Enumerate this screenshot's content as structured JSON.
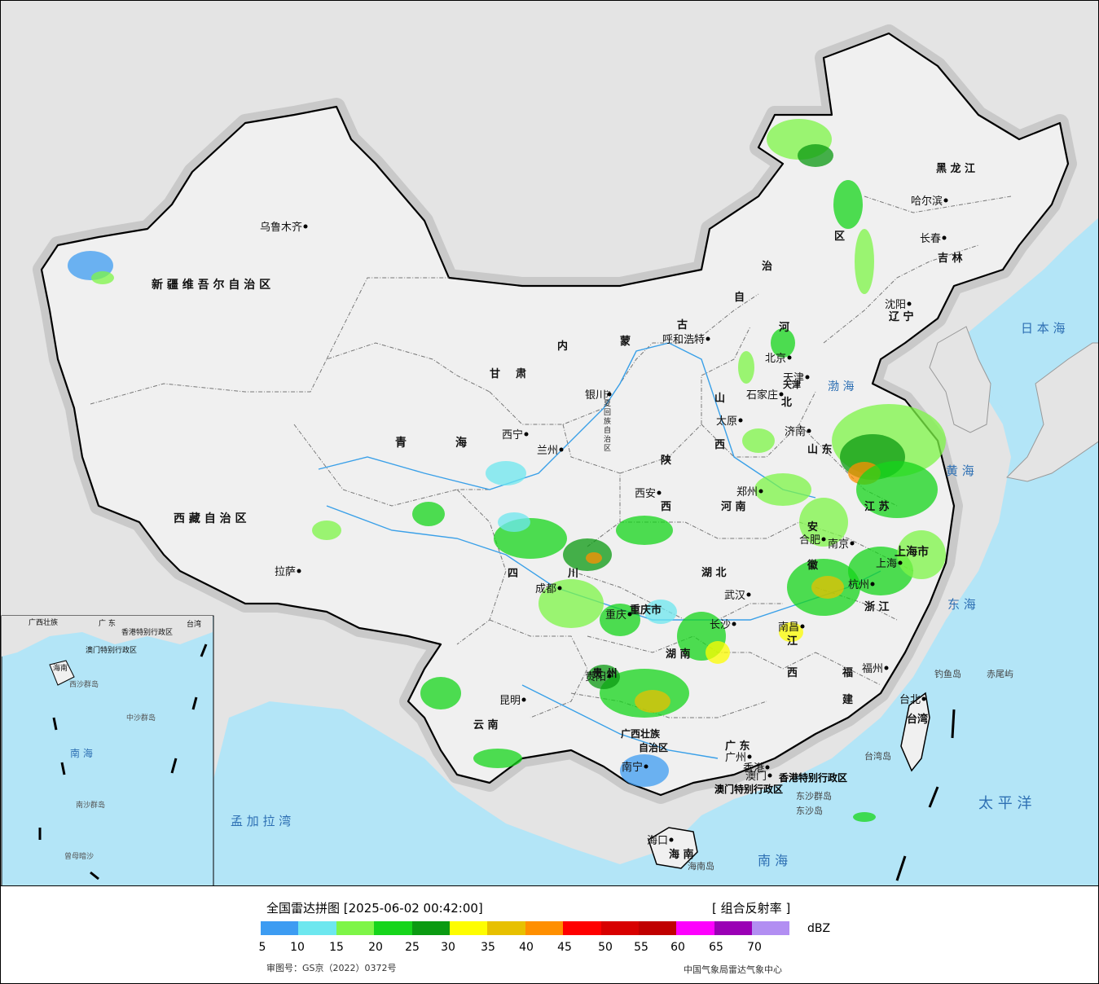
{
  "map": {
    "province_labels": [
      {
        "name": "xinjiang",
        "text": "新 疆 维 吾 尔 自 治 区"
      },
      {
        "name": "xizang",
        "text": "西 藏 自 治 区"
      },
      {
        "name": "qinghai-1",
        "text": "青"
      },
      {
        "name": "qinghai-2",
        "text": "海"
      },
      {
        "name": "gansu-1",
        "text": "甘"
      },
      {
        "name": "gansu-2",
        "text": "肃"
      },
      {
        "name": "neimenggu-1",
        "text": "内"
      },
      {
        "name": "neimenggu-2",
        "text": "蒙"
      },
      {
        "name": "neimenggu-3",
        "text": "古"
      },
      {
        "name": "neimenggu-4",
        "text": "自"
      },
      {
        "name": "neimenggu-5",
        "text": "治"
      },
      {
        "name": "neimenggu-6",
        "text": "区"
      },
      {
        "name": "heilongjiang",
        "text": "黑 龙 江"
      },
      {
        "name": "jilin",
        "text": "吉 林"
      },
      {
        "name": "liaoning",
        "text": "辽 宁"
      },
      {
        "name": "sichuan-1",
        "text": "四"
      },
      {
        "name": "sichuan-2",
        "text": "川"
      },
      {
        "name": "chongqing",
        "text": "重庆市"
      },
      {
        "name": "shaanxi-1",
        "text": "陕"
      },
      {
        "name": "shaanxi-2",
        "text": "西"
      },
      {
        "name": "shanxi-1",
        "text": "山"
      },
      {
        "name": "shanxi-2",
        "text": "西"
      },
      {
        "name": "hebei-1",
        "text": "河"
      },
      {
        "name": "hebei-2",
        "text": "北"
      },
      {
        "name": "henan",
        "text": "河 南"
      },
      {
        "name": "hubei",
        "text": "湖 北"
      },
      {
        "name": "hunan",
        "text": "湖 南"
      },
      {
        "name": "jiangxi-1",
        "text": "江"
      },
      {
        "name": "jiangxi-2",
        "text": "西"
      },
      {
        "name": "fujian-1",
        "text": "福"
      },
      {
        "name": "fujian-2",
        "text": "建"
      },
      {
        "name": "guizhou",
        "text": "贵 州"
      },
      {
        "name": "yunnan",
        "text": "云 南"
      },
      {
        "name": "guangxi",
        "text": "广西壮族"
      },
      {
        "name": "guangxi-2",
        "text": "自治区"
      },
      {
        "name": "guangdong",
        "text": "广 东"
      },
      {
        "name": "hainan",
        "text": "海 南"
      },
      {
        "name": "shandong",
        "text": "山 东"
      },
      {
        "name": "jiangsu",
        "text": "江 苏"
      },
      {
        "name": "anhui-1",
        "text": "安"
      },
      {
        "name": "anhui-2",
        "text": "徽"
      },
      {
        "name": "zhejiang",
        "text": "浙 江"
      },
      {
        "name": "shanghai",
        "text": "上海市"
      },
      {
        "name": "tianjin",
        "text": "天津"
      },
      {
        "name": "ningxia",
        "text": "宁夏回族自治区"
      },
      {
        "name": "taiwan",
        "text": "台湾"
      },
      {
        "name": "hk",
        "text": "香港特别行政区"
      },
      {
        "name": "macau",
        "text": "澳门特别行政区"
      }
    ],
    "cities": [
      {
        "name": "urumqi",
        "text": "乌鲁木齐"
      },
      {
        "name": "lhasa",
        "text": "拉萨"
      },
      {
        "name": "xining",
        "text": "西宁"
      },
      {
        "name": "lanzhou",
        "text": "兰州"
      },
      {
        "name": "yinchuan",
        "text": "银川"
      },
      {
        "name": "hohhot",
        "text": "呼和浩特"
      },
      {
        "name": "beijing",
        "text": "北京"
      },
      {
        "name": "tianjin-city",
        "text": "天津"
      },
      {
        "name": "shijiazhuang",
        "text": "石家庄"
      },
      {
        "name": "taiyuan",
        "text": "太原"
      },
      {
        "name": "jinan",
        "text": "济南"
      },
      {
        "name": "zhengzhou",
        "text": "郑州"
      },
      {
        "name": "xian",
        "text": "西安"
      },
      {
        "name": "chengdu",
        "text": "成都"
      },
      {
        "name": "chongqing-city",
        "text": "重庆"
      },
      {
        "name": "wuhan",
        "text": "武汉"
      },
      {
        "name": "hefei",
        "text": "合肥"
      },
      {
        "name": "nanjing",
        "text": "南京"
      },
      {
        "name": "shanghai-city",
        "text": "上海"
      },
      {
        "name": "hangzhou",
        "text": "杭州"
      },
      {
        "name": "nanchang",
        "text": "南昌"
      },
      {
        "name": "changsha",
        "text": "长沙"
      },
      {
        "name": "fuzhou",
        "text": "福州"
      },
      {
        "name": "guiyang",
        "text": "贵阳"
      },
      {
        "name": "kunming",
        "text": "昆明"
      },
      {
        "name": "nanning",
        "text": "南宁"
      },
      {
        "name": "guangzhou",
        "text": "广州"
      },
      {
        "name": "hongkong",
        "text": "香港"
      },
      {
        "name": "macau-city",
        "text": "澳门"
      },
      {
        "name": "haikou",
        "text": "海口"
      },
      {
        "name": "taipei",
        "text": "台北"
      },
      {
        "name": "shenyang",
        "text": "沈阳"
      },
      {
        "name": "changchun",
        "text": "长春"
      },
      {
        "name": "harbin",
        "text": "哈尔滨"
      }
    ],
    "sea_labels": [
      {
        "name": "japan-sea",
        "text": "日 本 海"
      },
      {
        "name": "bohai",
        "text": "渤 海"
      },
      {
        "name": "huanghai",
        "text": "黄 海"
      },
      {
        "name": "donghai",
        "text": "东 海"
      },
      {
        "name": "taipingyang",
        "text": "太 平 洋"
      },
      {
        "name": "nanhai",
        "text": "南 海"
      },
      {
        "name": "bengal",
        "text": "孟 加 拉 湾"
      },
      {
        "name": "hainan-island",
        "text": "海南岛"
      },
      {
        "name": "taiwan-island",
        "text": "台湾岛"
      },
      {
        "name": "diaoyu",
        "text": "钓鱼岛"
      },
      {
        "name": "chiwei",
        "text": "赤尾屿"
      },
      {
        "name": "dongsha-qundao",
        "text": "东沙群岛"
      },
      {
        "name": "dongsha-dao",
        "text": "东沙岛"
      }
    ],
    "inset_labels": [
      {
        "name": "inset-nanhai",
        "text": "南 海"
      },
      {
        "name": "inset-hainan",
        "text": "海南"
      },
      {
        "name": "inset-guangxi",
        "text": "广西壮族"
      },
      {
        "name": "inset-guangdong",
        "text": "广 东"
      },
      {
        "name": "inset-taiwan",
        "text": "台湾"
      },
      {
        "name": "inset-hk",
        "text": "香港特别行政区"
      },
      {
        "name": "inset-macau",
        "text": "澳门特别行政区"
      },
      {
        "name": "inset-xisha",
        "text": "西沙群岛"
      },
      {
        "name": "inset-zhongsha",
        "text": "中沙群岛"
      },
      {
        "name": "inset-nansha",
        "text": "南沙群岛"
      },
      {
        "name": "inset-zengmu",
        "text": "曾母暗沙"
      }
    ],
    "colors": {
      "ocean": "#b3e5f7",
      "land_china": "#f0f0f0",
      "land_foreign": "#e4e4e4",
      "border": "#000000",
      "province_line": "#777777",
      "river": "#3aa0e8",
      "halo": "#c9c9c9"
    }
  },
  "legend": {
    "title": "全国雷达拼图 [2025-06-02 00:42:00]",
    "product": "[ 组合反射率 ]",
    "unit": "dBZ",
    "ticks": [
      "5",
      "10",
      "15",
      "20",
      "25",
      "30",
      "35",
      "40",
      "45",
      "50",
      "55",
      "60",
      "65",
      "70"
    ],
    "colors": [
      "#3d9cf2",
      "#6de7ef",
      "#7ef547",
      "#16d51b",
      "#0b9a12",
      "#fefd00",
      "#e7c000",
      "#ff8f00",
      "#ff0000",
      "#d80000",
      "#c00000",
      "#fd00fd",
      "#9a00b5",
      "#b28ef2"
    ],
    "approval": "审图号：GS京（2022）0372号",
    "source": "中国气象局雷达气象中心"
  },
  "chart_data": {
    "type": "heatmap",
    "title": "全国雷达拼图 [2025-06-02 00:42:00]",
    "product": "组合反射率",
    "unit": "dBZ",
    "scale_min": 5,
    "scale_max": 70,
    "scale_step": 5
  }
}
